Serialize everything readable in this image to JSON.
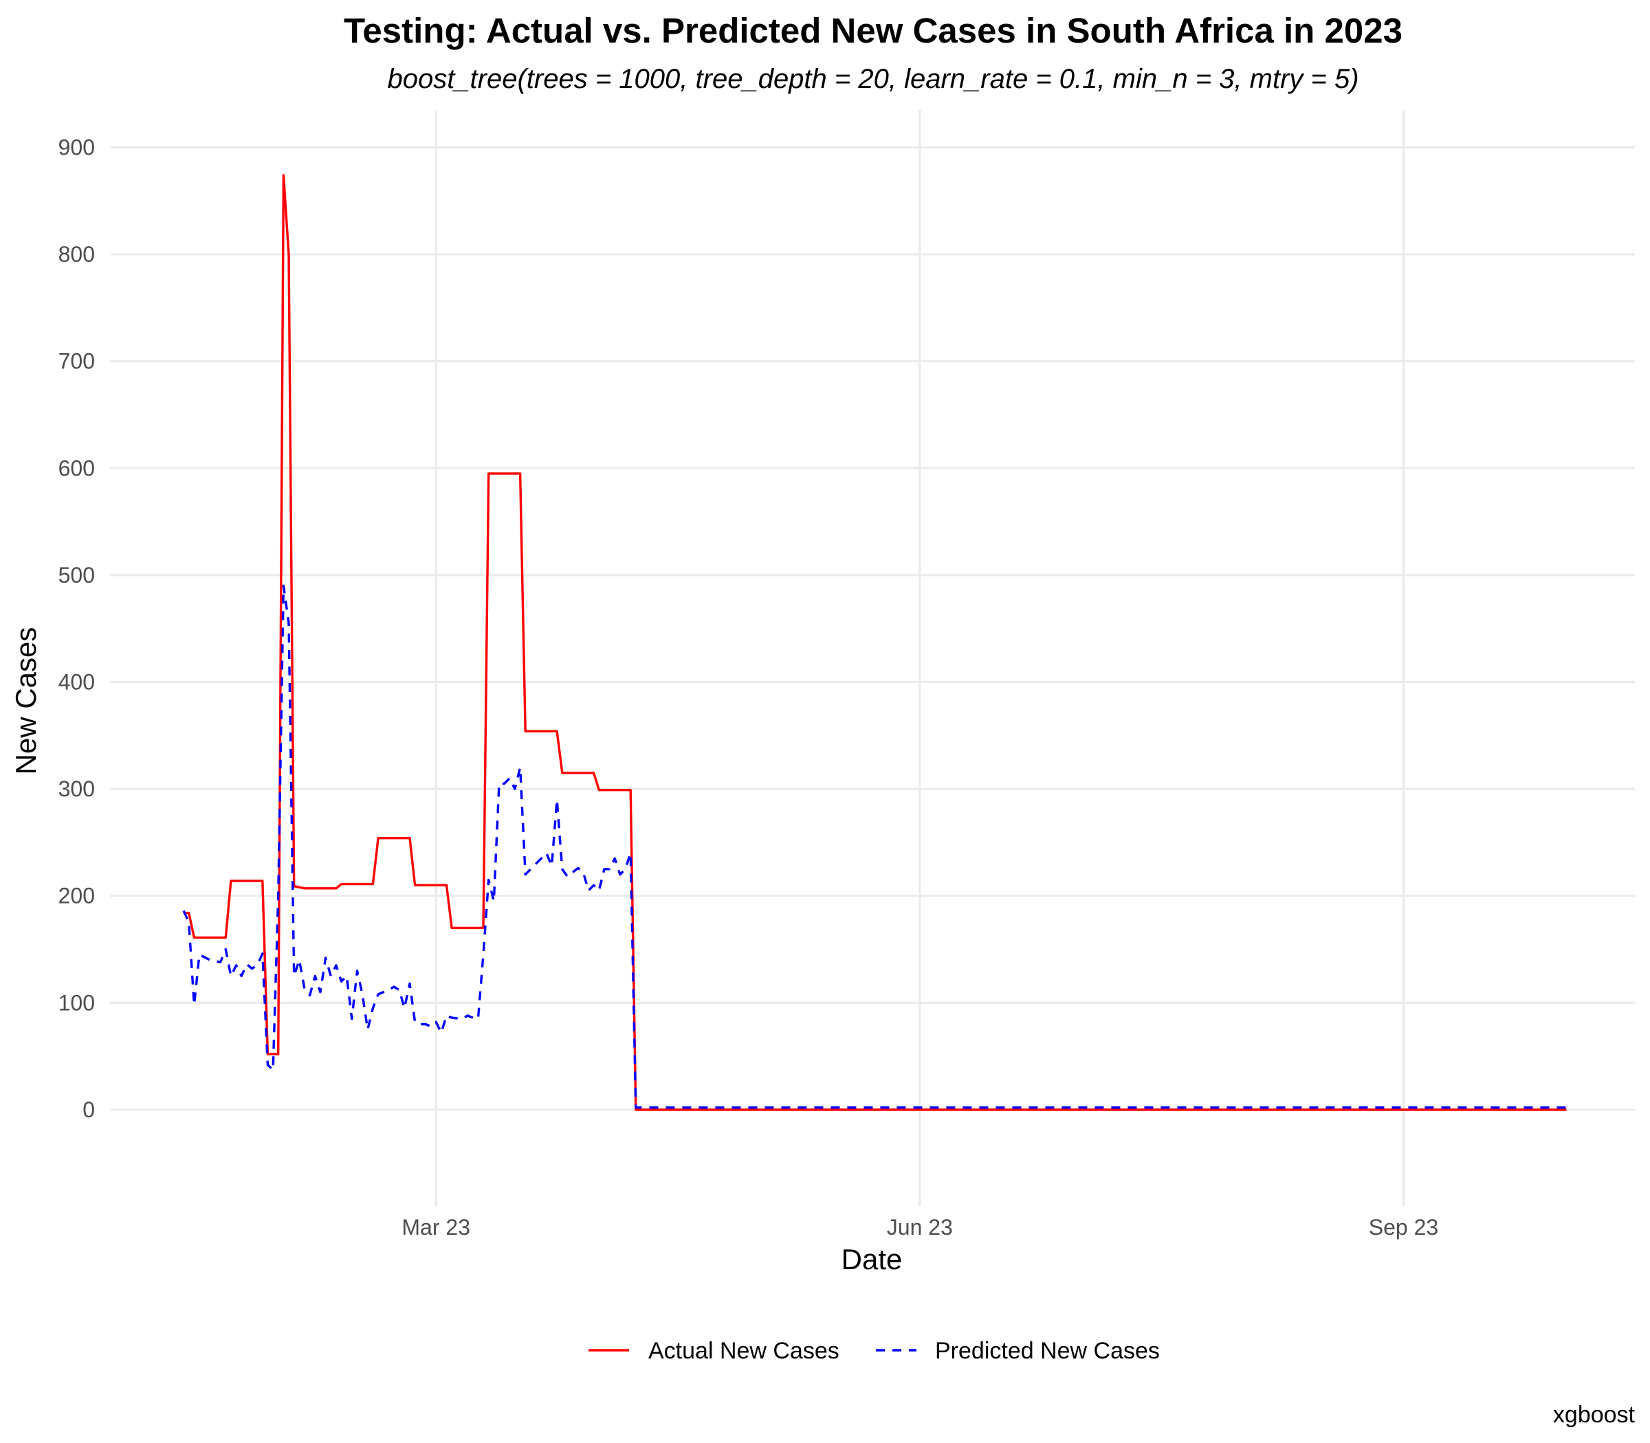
{
  "chart_data": {
    "type": "line",
    "title": "Testing: Actual vs. Predicted New Cases in South Africa in 2023",
    "subtitle": "boost_tree(trees = 1000, tree_depth = 20, learn_rate = 0.1, min_n = 3, mtry = 5)",
    "xlabel": "Date",
    "ylabel": "New Cases",
    "caption": "xgboost",
    "x_range": [
      "2022-12-29",
      "2023-10-15"
    ],
    "x_ticks": [
      {
        "date": "2023-03-01",
        "label": "Mar 23"
      },
      {
        "date": "2023-06-01",
        "label": "Jun 23"
      },
      {
        "date": "2023-09-01",
        "label": "Sep 23"
      }
    ],
    "ylim": [
      -90,
      935
    ],
    "y_ticks": [
      0,
      100,
      200,
      300,
      400,
      500,
      600,
      700,
      800,
      900
    ],
    "grid": true,
    "legend_position": "bottom",
    "colors": {
      "actual": "#ff0000",
      "predicted": "#0000ff"
    },
    "series": [
      {
        "name": "Actual New Cases",
        "color": "#ff0000",
        "dash": "solid",
        "points": [
          [
            "2023-01-12",
            184
          ],
          [
            "2023-01-13",
            184
          ],
          [
            "2023-01-14",
            161
          ],
          [
            "2023-01-20",
            161
          ],
          [
            "2023-01-21",
            214
          ],
          [
            "2023-01-27",
            214
          ],
          [
            "2023-01-28",
            52
          ],
          [
            "2023-01-29",
            52
          ],
          [
            "2023-01-30",
            52
          ],
          [
            "2023-01-31",
            874
          ],
          [
            "2023-02-01",
            800
          ],
          [
            "2023-02-02",
            209
          ],
          [
            "2023-02-04",
            207
          ],
          [
            "2023-02-10",
            207
          ],
          [
            "2023-02-11",
            211
          ],
          [
            "2023-02-17",
            211
          ],
          [
            "2023-02-18",
            254
          ],
          [
            "2023-02-24",
            254
          ],
          [
            "2023-02-25",
            210
          ],
          [
            "2023-03-03",
            210
          ],
          [
            "2023-03-04",
            170
          ],
          [
            "2023-03-10",
            170
          ],
          [
            "2023-03-11",
            595
          ],
          [
            "2023-03-17",
            595
          ],
          [
            "2023-03-18",
            354
          ],
          [
            "2023-03-24",
            354
          ],
          [
            "2023-03-25",
            315
          ],
          [
            "2023-03-31",
            315
          ],
          [
            "2023-04-01",
            299
          ],
          [
            "2023-04-07",
            299
          ],
          [
            "2023-04-08",
            0
          ],
          [
            "2023-10-02",
            0
          ]
        ]
      },
      {
        "name": "Predicted New Cases",
        "color": "#0000ff",
        "dash": "dashed",
        "points": [
          [
            "2023-01-12",
            186
          ],
          [
            "2023-01-13",
            175
          ],
          [
            "2023-01-14",
            98
          ],
          [
            "2023-01-15",
            145
          ],
          [
            "2023-01-17",
            140
          ],
          [
            "2023-01-19",
            138
          ],
          [
            "2023-01-20",
            150
          ],
          [
            "2023-01-21",
            125
          ],
          [
            "2023-01-22",
            135
          ],
          [
            "2023-01-23",
            125
          ],
          [
            "2023-01-24",
            136
          ],
          [
            "2023-01-25",
            132
          ],
          [
            "2023-01-26",
            135
          ],
          [
            "2023-01-27",
            146
          ],
          [
            "2023-01-28",
            42
          ],
          [
            "2023-01-29",
            37
          ],
          [
            "2023-01-30",
            200
          ],
          [
            "2023-01-31",
            490
          ],
          [
            "2023-02-01",
            455
          ],
          [
            "2023-02-02",
            125
          ],
          [
            "2023-02-03",
            140
          ],
          [
            "2023-02-04",
            113
          ],
          [
            "2023-02-05",
            107
          ],
          [
            "2023-02-06",
            125
          ],
          [
            "2023-02-07",
            110
          ],
          [
            "2023-02-08",
            142
          ],
          [
            "2023-02-09",
            125
          ],
          [
            "2023-02-10",
            135
          ],
          [
            "2023-02-11",
            120
          ],
          [
            "2023-02-12",
            125
          ],
          [
            "2023-02-13",
            85
          ],
          [
            "2023-02-14",
            130
          ],
          [
            "2023-02-15",
            108
          ],
          [
            "2023-02-16",
            75
          ],
          [
            "2023-02-17",
            95
          ],
          [
            "2023-02-18",
            108
          ],
          [
            "2023-02-20",
            112
          ],
          [
            "2023-02-21",
            115
          ],
          [
            "2023-02-22",
            112
          ],
          [
            "2023-02-23",
            95
          ],
          [
            "2023-02-24",
            118
          ],
          [
            "2023-02-25",
            82
          ],
          [
            "2023-02-26",
            80
          ],
          [
            "2023-02-27",
            80
          ],
          [
            "2023-02-28",
            78
          ],
          [
            "2023-03-01",
            82
          ],
          [
            "2023-03-02",
            72
          ],
          [
            "2023-03-03",
            88
          ],
          [
            "2023-03-04",
            86
          ],
          [
            "2023-03-06",
            85
          ],
          [
            "2023-03-07",
            88
          ],
          [
            "2023-03-08",
            86
          ],
          [
            "2023-03-09",
            85
          ],
          [
            "2023-03-10",
            145
          ],
          [
            "2023-03-11",
            215
          ],
          [
            "2023-03-12",
            195
          ],
          [
            "2023-03-13",
            305
          ],
          [
            "2023-03-14",
            305
          ],
          [
            "2023-03-15",
            310
          ],
          [
            "2023-03-16",
            300
          ],
          [
            "2023-03-17",
            320
          ],
          [
            "2023-03-18",
            220
          ],
          [
            "2023-03-19",
            225
          ],
          [
            "2023-03-20",
            230
          ],
          [
            "2023-03-21",
            235
          ],
          [
            "2023-03-22",
            240
          ],
          [
            "2023-03-23",
            228
          ],
          [
            "2023-03-24",
            290
          ],
          [
            "2023-03-25",
            225
          ],
          [
            "2023-03-26",
            218
          ],
          [
            "2023-03-27",
            222
          ],
          [
            "2023-03-28",
            226
          ],
          [
            "2023-03-29",
            222
          ],
          [
            "2023-03-30",
            205
          ],
          [
            "2023-03-31",
            210
          ],
          [
            "2023-04-01",
            205
          ],
          [
            "2023-04-02",
            225
          ],
          [
            "2023-04-03",
            225
          ],
          [
            "2023-04-04",
            235
          ],
          [
            "2023-04-05",
            220
          ],
          [
            "2023-04-06",
            225
          ],
          [
            "2023-04-07",
            240
          ],
          [
            "2023-04-08",
            2
          ],
          [
            "2023-10-02",
            2
          ]
        ]
      }
    ]
  }
}
